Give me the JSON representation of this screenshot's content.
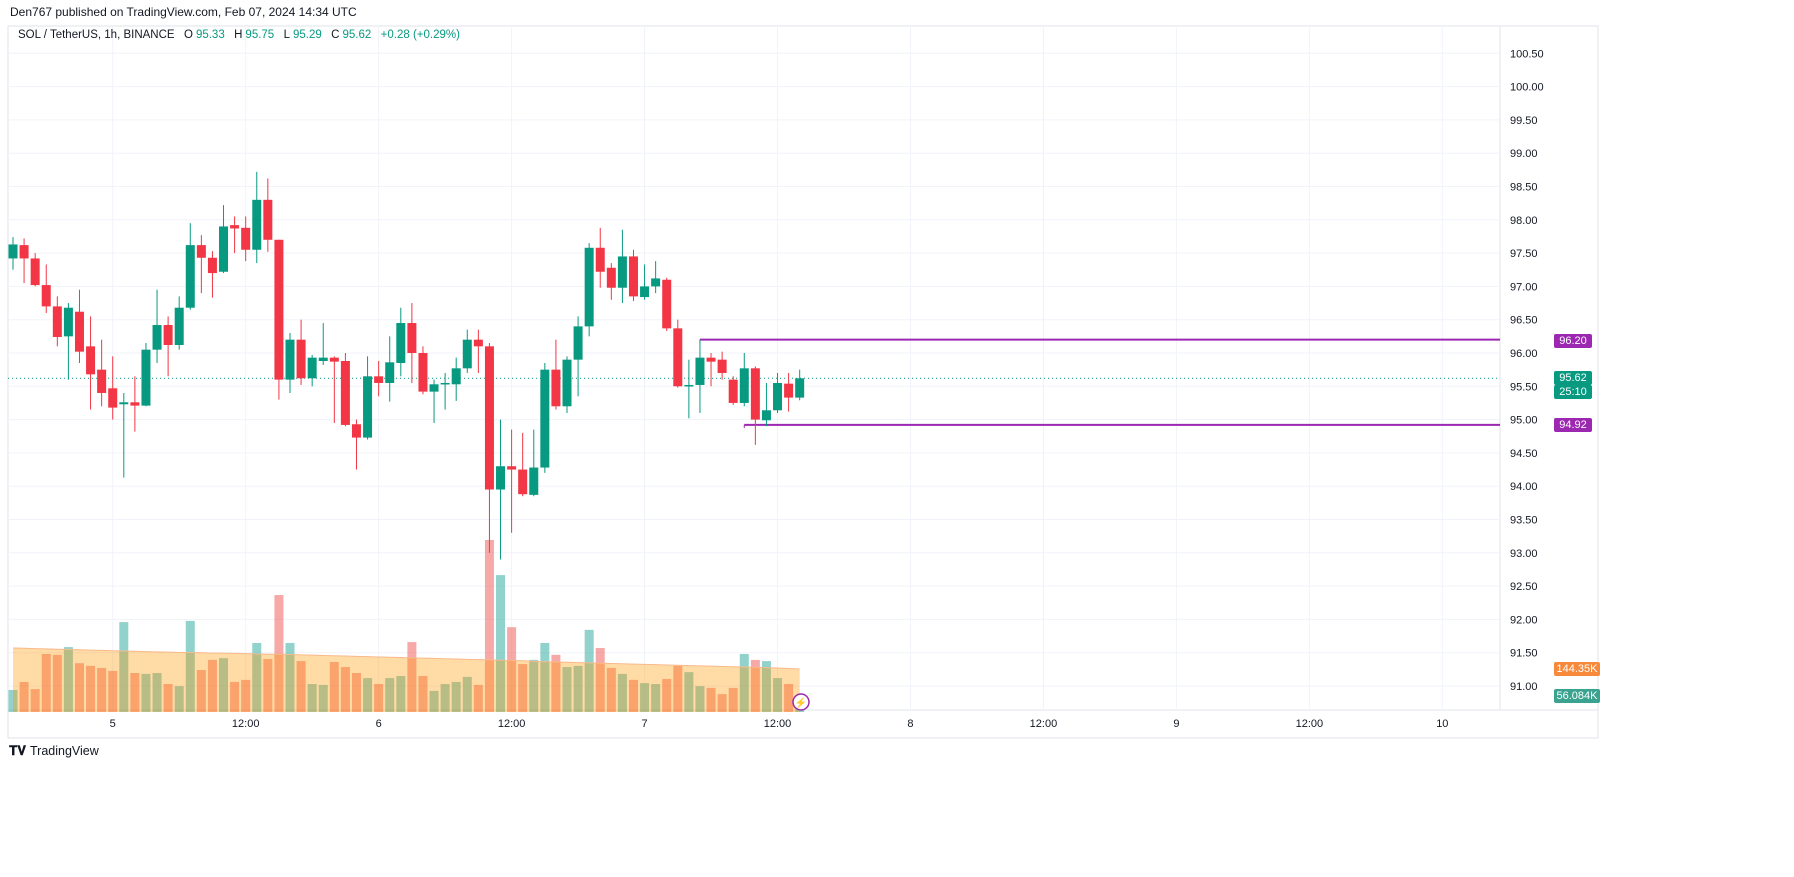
{
  "header": {
    "published": "Den767 published on TradingView.com, Feb 07, 2024 14:34 UTC"
  },
  "legend": {
    "symbol": "SOL / TetherUS, 1h, BINANCE",
    "o_label": "O",
    "o": "95.33",
    "h_label": "H",
    "h": "95.75",
    "l_label": "L",
    "l": "95.29",
    "c_label": "C",
    "c": "95.62",
    "change": "+0.28 (+0.29%)"
  },
  "colors": {
    "up": "#089981",
    "down": "#f23645",
    "vol_up": "#26a69a",
    "vol_down": "#ef5350",
    "vol_ma": "#ff9800",
    "level": "#9c27b0",
    "grid": "#f0f3fa"
  },
  "tags": {
    "level_high": "96.20",
    "level_low": "94.92",
    "last_price": "95.62",
    "countdown": "25:10",
    "vol_ma": "144.35K",
    "volume": "56.084K"
  },
  "footer": {
    "brand": "TradingView"
  },
  "chart_data": {
    "type": "candlestick",
    "interval": "1h",
    "start": "Feb 4 15:00",
    "price_ticks": [
      "100.50",
      "100.00",
      "99.50",
      "99.00",
      "98.50",
      "98.00",
      "97.50",
      "97.00",
      "96.50",
      "96.00",
      "95.50",
      "95.00",
      "94.50",
      "94.00",
      "93.50",
      "93.00",
      "92.50",
      "92.00",
      "91.50",
      "91.00"
    ],
    "time_ticks": [
      {
        "label": "5",
        "hour": 9
      },
      {
        "label": "12:00",
        "hour": 21
      },
      {
        "label": "6",
        "hour": 33
      },
      {
        "label": "12:00",
        "hour": 45
      },
      {
        "label": "7",
        "hour": 57
      },
      {
        "label": "12:00",
        "hour": 69
      },
      {
        "label": "8",
        "hour": 81
      },
      {
        "label": "12:00",
        "hour": 93
      },
      {
        "label": "9",
        "hour": 105
      },
      {
        "label": "12:00",
        "hour": 117
      },
      {
        "label": "10",
        "hour": 129
      }
    ],
    "levels": [
      {
        "price": 96.2,
        "from_hour": 62
      },
      {
        "price": 94.92,
        "from_hour": 66
      }
    ],
    "last_price": 95.62,
    "ohlc": [
      [
        97.42,
        97.74,
        97.25,
        97.63
      ],
      [
        97.62,
        97.72,
        97.05,
        97.42
      ],
      [
        97.42,
        97.5,
        97.0,
        97.02
      ],
      [
        97.02,
        97.33,
        96.6,
        96.7
      ],
      [
        96.7,
        96.85,
        96.1,
        96.24
      ],
      [
        96.25,
        96.75,
        95.6,
        96.68
      ],
      [
        96.62,
        96.95,
        95.85,
        96.02
      ],
      [
        96.1,
        96.55,
        95.15,
        95.68
      ],
      [
        95.75,
        96.2,
        95.2,
        95.4
      ],
      [
        95.47,
        95.95,
        95.0,
        95.18
      ],
      [
        95.23,
        95.4,
        94.13,
        95.26
      ],
      [
        95.26,
        95.65,
        94.82,
        95.21
      ],
      [
        95.21,
        96.15,
        95.2,
        96.05
      ],
      [
        96.05,
        96.95,
        95.85,
        96.42
      ],
      [
        96.42,
        96.55,
        95.65,
        96.12
      ],
      [
        96.12,
        96.85,
        96.05,
        96.68
      ],
      [
        96.68,
        97.95,
        96.65,
        97.62
      ],
      [
        97.62,
        97.77,
        96.9,
        97.43
      ],
      [
        97.43,
        97.53,
        96.83,
        97.2
      ],
      [
        97.22,
        98.22,
        97.2,
        97.9
      ],
      [
        97.92,
        98.05,
        97.5,
        97.87
      ],
      [
        97.88,
        98.05,
        97.38,
        97.55
      ],
      [
        97.55,
        98.72,
        97.35,
        98.3
      ],
      [
        98.3,
        98.62,
        97.52,
        97.7
      ],
      [
        97.7,
        97.7,
        95.3,
        95.6
      ],
      [
        95.6,
        96.3,
        95.4,
        96.2
      ],
      [
        96.2,
        96.5,
        95.52,
        95.62
      ],
      [
        95.62,
        95.97,
        95.5,
        95.93
      ],
      [
        95.88,
        96.45,
        95.82,
        95.93
      ],
      [
        95.93,
        95.95,
        94.95,
        95.87
      ],
      [
        95.88,
        96.0,
        94.9,
        94.92
      ],
      [
        94.93,
        95.0,
        94.25,
        94.73
      ],
      [
        94.73,
        95.95,
        94.7,
        95.65
      ],
      [
        95.65,
        95.88,
        95.35,
        95.55
      ],
      [
        95.55,
        96.25,
        95.27,
        95.86
      ],
      [
        95.85,
        96.68,
        95.65,
        96.45
      ],
      [
        96.45,
        96.75,
        95.55,
        96.0
      ],
      [
        96.0,
        96.1,
        95.38,
        95.42
      ],
      [
        95.42,
        95.6,
        94.95,
        95.53
      ],
      [
        95.53,
        95.7,
        95.15,
        95.55
      ],
      [
        95.53,
        95.93,
        95.28,
        95.77
      ],
      [
        95.77,
        96.35,
        95.7,
        96.2
      ],
      [
        96.2,
        96.35,
        95.7,
        96.1
      ],
      [
        96.1,
        96.15,
        93.0,
        93.95
      ],
      [
        93.95,
        95.0,
        92.9,
        94.3
      ],
      [
        94.3,
        94.85,
        93.3,
        94.25
      ],
      [
        94.25,
        94.8,
        93.85,
        93.88
      ],
      [
        93.87,
        94.85,
        93.85,
        94.28
      ],
      [
        94.28,
        95.85,
        94.2,
        95.75
      ],
      [
        95.75,
        96.2,
        95.15,
        95.2
      ],
      [
        95.2,
        95.95,
        95.1,
        95.9
      ],
      [
        95.9,
        96.55,
        95.35,
        96.4
      ],
      [
        96.4,
        97.65,
        96.25,
        97.58
      ],
      [
        97.58,
        97.88,
        96.98,
        97.22
      ],
      [
        97.28,
        97.35,
        96.8,
        96.98
      ],
      [
        96.98,
        97.85,
        96.75,
        97.45
      ],
      [
        97.45,
        97.55,
        96.78,
        96.85
      ],
      [
        96.84,
        97.33,
        96.8,
        97.0
      ],
      [
        97.0,
        97.38,
        96.9,
        97.12
      ],
      [
        97.1,
        97.13,
        96.33,
        96.37
      ],
      [
        96.37,
        96.5,
        95.48,
        95.5
      ],
      [
        95.5,
        95.9,
        95.02,
        95.52
      ],
      [
        95.52,
        96.2,
        95.1,
        95.93
      ],
      [
        95.93,
        96.0,
        95.5,
        95.87
      ],
      [
        95.9,
        96.02,
        95.6,
        95.7
      ],
      [
        95.6,
        95.65,
        95.22,
        95.25
      ],
      [
        95.25,
        96.0,
        95.2,
        95.77
      ],
      [
        95.77,
        95.8,
        94.62,
        95.0
      ],
      [
        94.99,
        95.55,
        94.9,
        95.14
      ],
      [
        95.14,
        95.7,
        95.1,
        95.55
      ],
      [
        95.54,
        95.7,
        95.12,
        95.33
      ],
      [
        95.33,
        95.75,
        95.29,
        95.62
      ]
    ],
    "volume_k": [
      74,
      101,
      77,
      195,
      192,
      218,
      164,
      155,
      148,
      138,
      302,
      131,
      128,
      131,
      94,
      87,
      306,
      141,
      175,
      181,
      101,
      108,
      232,
      178,
      393,
      232,
      171,
      94,
      91,
      168,
      151,
      131,
      114,
      94,
      114,
      121,
      235,
      121,
      71,
      94,
      101,
      118,
      91,
      578,
      460,
      285,
      161,
      175,
      232,
      192,
      151,
      155,
      276,
      215,
      148,
      128,
      108,
      97,
      94,
      111,
      155,
      134,
      87,
      81,
      60,
      81,
      195,
      175,
      171,
      114,
      94,
      56
    ],
    "volume_ma_k": [
      215,
      214,
      213,
      212,
      211,
      210,
      209,
      208,
      207,
      206,
      205,
      204,
      203,
      202,
      201,
      200,
      200,
      199,
      198,
      198,
      197,
      196,
      195,
      194,
      194,
      193,
      192,
      191,
      190,
      189,
      188,
      187,
      186,
      185,
      184,
      183,
      182,
      181,
      180,
      179,
      178,
      177,
      176,
      175,
      174,
      173,
      172,
      170,
      169,
      168,
      167,
      166,
      165,
      164,
      163,
      162,
      161,
      160,
      159,
      158,
      157,
      156,
      155,
      154,
      153,
      152,
      151,
      150,
      149,
      148,
      146,
      144.35
    ]
  }
}
